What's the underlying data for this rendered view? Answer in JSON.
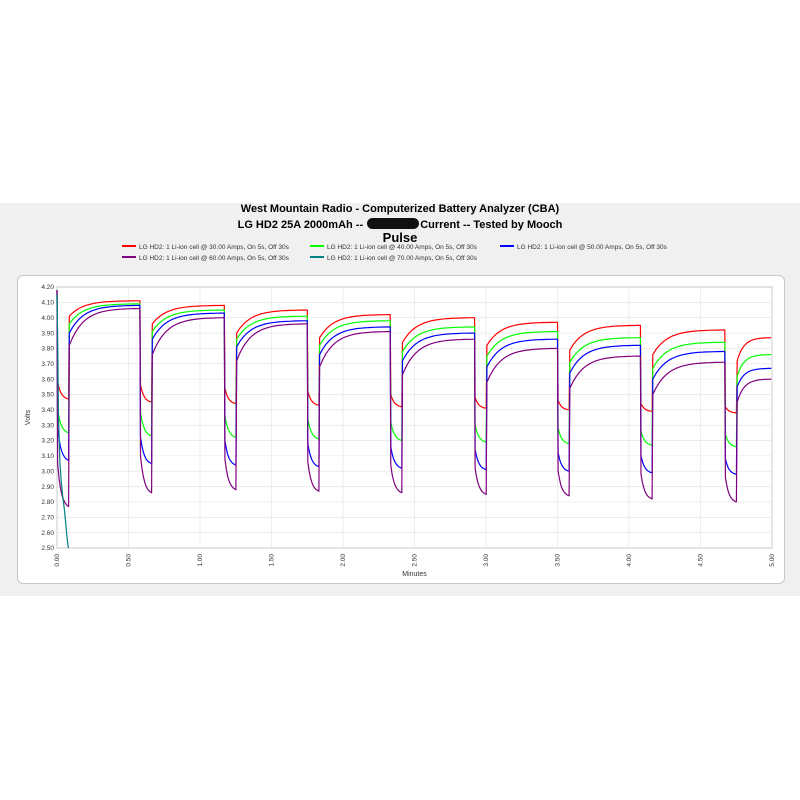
{
  "chart_data": {
    "type": "line",
    "title": "West Mountain Radio - Computerized Battery Analyzer (CBA)",
    "subtitle_left": "LG HD2 25A 2000mAh --",
    "subtitle_right": "Current -- Tested by Mooch",
    "subtitle2": "Pulse",
    "xlabel": "Minutes",
    "ylabel": "Volts",
    "xlim": [
      0,
      5
    ],
    "ylim": [
      2.5,
      4.2
    ],
    "grid": true,
    "legend_position": "top",
    "x_ticks": [
      "0.00",
      "0.50",
      "1.00",
      "1.50",
      "2.00",
      "2.50",
      "3.00",
      "3.50",
      "4.00",
      "4.50",
      "5.00"
    ],
    "y_ticks": [
      "2.50",
      "2.60",
      "2.70",
      "2.80",
      "2.90",
      "3.00",
      "3.10",
      "3.20",
      "3.30",
      "3.40",
      "3.50",
      "3.60",
      "3.70",
      "3.80",
      "3.90",
      "4.00",
      "4.10",
      "4.20"
    ],
    "pulse_starts_min": [
      0.0,
      0.58,
      1.17,
      1.75,
      2.33,
      2.92,
      3.5,
      4.08,
      4.67
    ],
    "on_duration_min": 0.0833,
    "series": [
      {
        "name": "LG HD2: 1 Li-ion cell @ 30.00 Amps, On 5s, Off 30s",
        "color": "#ff0000",
        "load_start": [
          3.58,
          3.56,
          3.54,
          3.52,
          3.5,
          3.48,
          3.46,
          3.44,
          3.42
        ],
        "load_end": [
          3.47,
          3.45,
          3.44,
          3.43,
          3.42,
          3.41,
          3.4,
          3.39,
          3.38
        ],
        "rest_start": [
          4.01,
          3.96,
          3.9,
          3.87,
          3.84,
          3.82,
          3.79,
          3.76,
          3.72
        ],
        "rest_end": [
          4.11,
          4.08,
          4.05,
          4.02,
          4.0,
          3.97,
          3.95,
          3.92,
          3.87
        ]
      },
      {
        "name": "LG HD2: 1 Li-ion cell @ 40.00 Amps, On 5s, Off 30s",
        "color": "#00ff00",
        "load_start": [
          3.4,
          3.38,
          3.36,
          3.34,
          3.32,
          3.3,
          3.28,
          3.26,
          3.24
        ],
        "load_end": [
          3.25,
          3.23,
          3.22,
          3.21,
          3.2,
          3.19,
          3.18,
          3.17,
          3.16
        ],
        "rest_start": [
          3.96,
          3.91,
          3.86,
          3.82,
          3.78,
          3.75,
          3.71,
          3.67,
          3.62
        ],
        "rest_end": [
          4.09,
          4.05,
          4.01,
          3.98,
          3.94,
          3.91,
          3.87,
          3.84,
          3.76
        ]
      },
      {
        "name": "LG HD2: 1 Li-ion cell @ 50.00 Amps, On 5s, Off 30s",
        "color": "#0000ff",
        "load_start": [
          3.28,
          3.22,
          3.2,
          3.18,
          3.16,
          3.14,
          3.12,
          3.1,
          3.08
        ],
        "load_end": [
          3.07,
          3.05,
          3.04,
          3.03,
          3.02,
          3.01,
          3.0,
          2.99,
          2.98
        ],
        "rest_start": [
          3.9,
          3.86,
          3.81,
          3.76,
          3.72,
          3.68,
          3.64,
          3.6,
          3.55
        ],
        "rest_end": [
          4.08,
          4.03,
          3.98,
          3.94,
          3.9,
          3.86,
          3.82,
          3.78,
          3.67
        ]
      },
      {
        "name": "LG HD2: 1 Li-ion cell @ 60.00 Amps, On 5s, Off 30s",
        "color": "#800080",
        "load_start": [
          3.05,
          3.1,
          3.08,
          3.06,
          3.04,
          3.02,
          3.0,
          2.98,
          2.96
        ],
        "load_end": [
          2.77,
          2.86,
          2.88,
          2.87,
          2.86,
          2.85,
          2.84,
          2.82,
          2.8
        ],
        "rest_start": [
          3.82,
          3.76,
          3.72,
          3.68,
          3.63,
          3.58,
          3.54,
          3.5,
          3.45
        ],
        "rest_end": [
          4.06,
          4.0,
          3.96,
          3.91,
          3.86,
          3.8,
          3.75,
          3.71,
          3.6
        ]
      },
      {
        "name": "LG HD2: 1 Li-ion cell @ 70.00 Amps, On 5s, Off 30s",
        "color": "#008080",
        "x": [
          0.0,
          0.005,
          0.01,
          0.02,
          0.03,
          0.04,
          0.05,
          0.06,
          0.07,
          0.08
        ],
        "y": [
          4.15,
          3.85,
          3.38,
          3.05,
          2.93,
          2.84,
          2.76,
          2.67,
          2.57,
          2.5
        ]
      }
    ]
  }
}
